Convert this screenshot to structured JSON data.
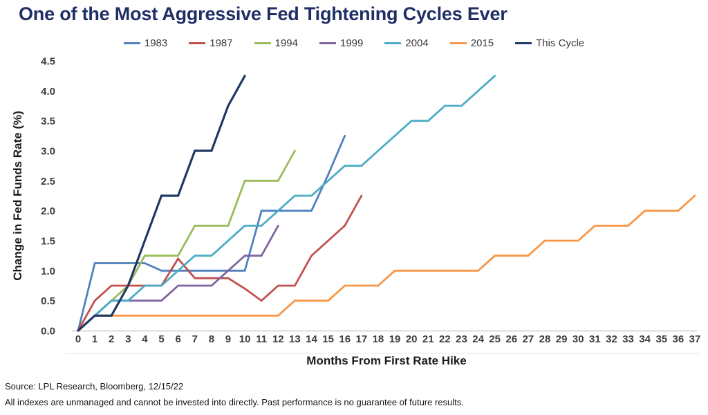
{
  "header": {
    "title": "One of the Most Aggressive Fed Tightening Cycles Ever"
  },
  "footer": {
    "source_line": "Source: LPL Research, Bloomberg, 12/15/22",
    "disclaimer_line": "All indexes are unmanaged and cannot be invested into directly. Past performance is no guarantee of future results."
  },
  "chart_data": {
    "type": "line",
    "title": "One of the Most Aggressive Fed Tightening Cycles Ever",
    "xlabel": "Months From First Rate Hike",
    "ylabel": "Change in Fed Funds Rate (%)",
    "xlim": [
      0,
      37
    ],
    "ylim": [
      0,
      4.5
    ],
    "x_tick_step": 1,
    "y_tick_step": 0.5,
    "grid": false,
    "legend_position": "top",
    "series": [
      {
        "name": "1983",
        "color": "#4F81BD",
        "values": [
          0,
          1.125,
          1.125,
          1.125,
          1.125,
          1.0,
          1.0,
          1.0,
          1.0,
          1.0,
          1.0,
          2.0,
          2.0,
          2.0,
          2.0,
          2.6,
          3.25
        ]
      },
      {
        "name": "1987",
        "color": "#C0504D",
        "values": [
          0,
          0.5,
          0.75,
          0.75,
          0.75,
          0.75,
          1.2,
          0.875,
          0.875,
          0.875,
          0.7,
          0.5,
          0.75,
          0.75,
          1.25,
          1.5,
          1.75,
          2.25
        ]
      },
      {
        "name": "1994",
        "color": "#9BBB59",
        "values": [
          0,
          0.25,
          0.5,
          0.75,
          1.25,
          1.25,
          1.25,
          1.75,
          1.75,
          1.75,
          2.5,
          2.5,
          2.5,
          3.0
        ]
      },
      {
        "name": "1999",
        "color": "#8064A2",
        "values": [
          0,
          0.25,
          0.5,
          0.5,
          0.5,
          0.5,
          0.75,
          0.75,
          0.75,
          1.0,
          1.25,
          1.25,
          1.75
        ]
      },
      {
        "name": "2004",
        "color": "#4BACC6",
        "values": [
          0,
          0.25,
          0.5,
          0.5,
          0.75,
          0.75,
          1.0,
          1.25,
          1.25,
          1.5,
          1.75,
          1.75,
          2.0,
          2.25,
          2.25,
          2.5,
          2.75,
          2.75,
          3.0,
          3.25,
          3.5,
          3.5,
          3.75,
          3.75,
          4.0,
          4.25
        ]
      },
      {
        "name": "2015",
        "color": "#F79646",
        "values": [
          0,
          0.25,
          0.25,
          0.25,
          0.25,
          0.25,
          0.25,
          0.25,
          0.25,
          0.25,
          0.25,
          0.25,
          0.25,
          0.5,
          0.5,
          0.5,
          0.75,
          0.75,
          0.75,
          1.0,
          1.0,
          1.0,
          1.0,
          1.0,
          1.0,
          1.25,
          1.25,
          1.25,
          1.5,
          1.5,
          1.5,
          1.75,
          1.75,
          1.75,
          2.0,
          2.0,
          2.0,
          2.25
        ]
      },
      {
        "name": "This Cycle",
        "color": "#1F3864",
        "values": [
          0,
          0.25,
          0.25,
          0.75,
          1.5,
          2.25,
          2.25,
          3.0,
          3.0,
          3.75,
          4.25
        ]
      }
    ]
  }
}
